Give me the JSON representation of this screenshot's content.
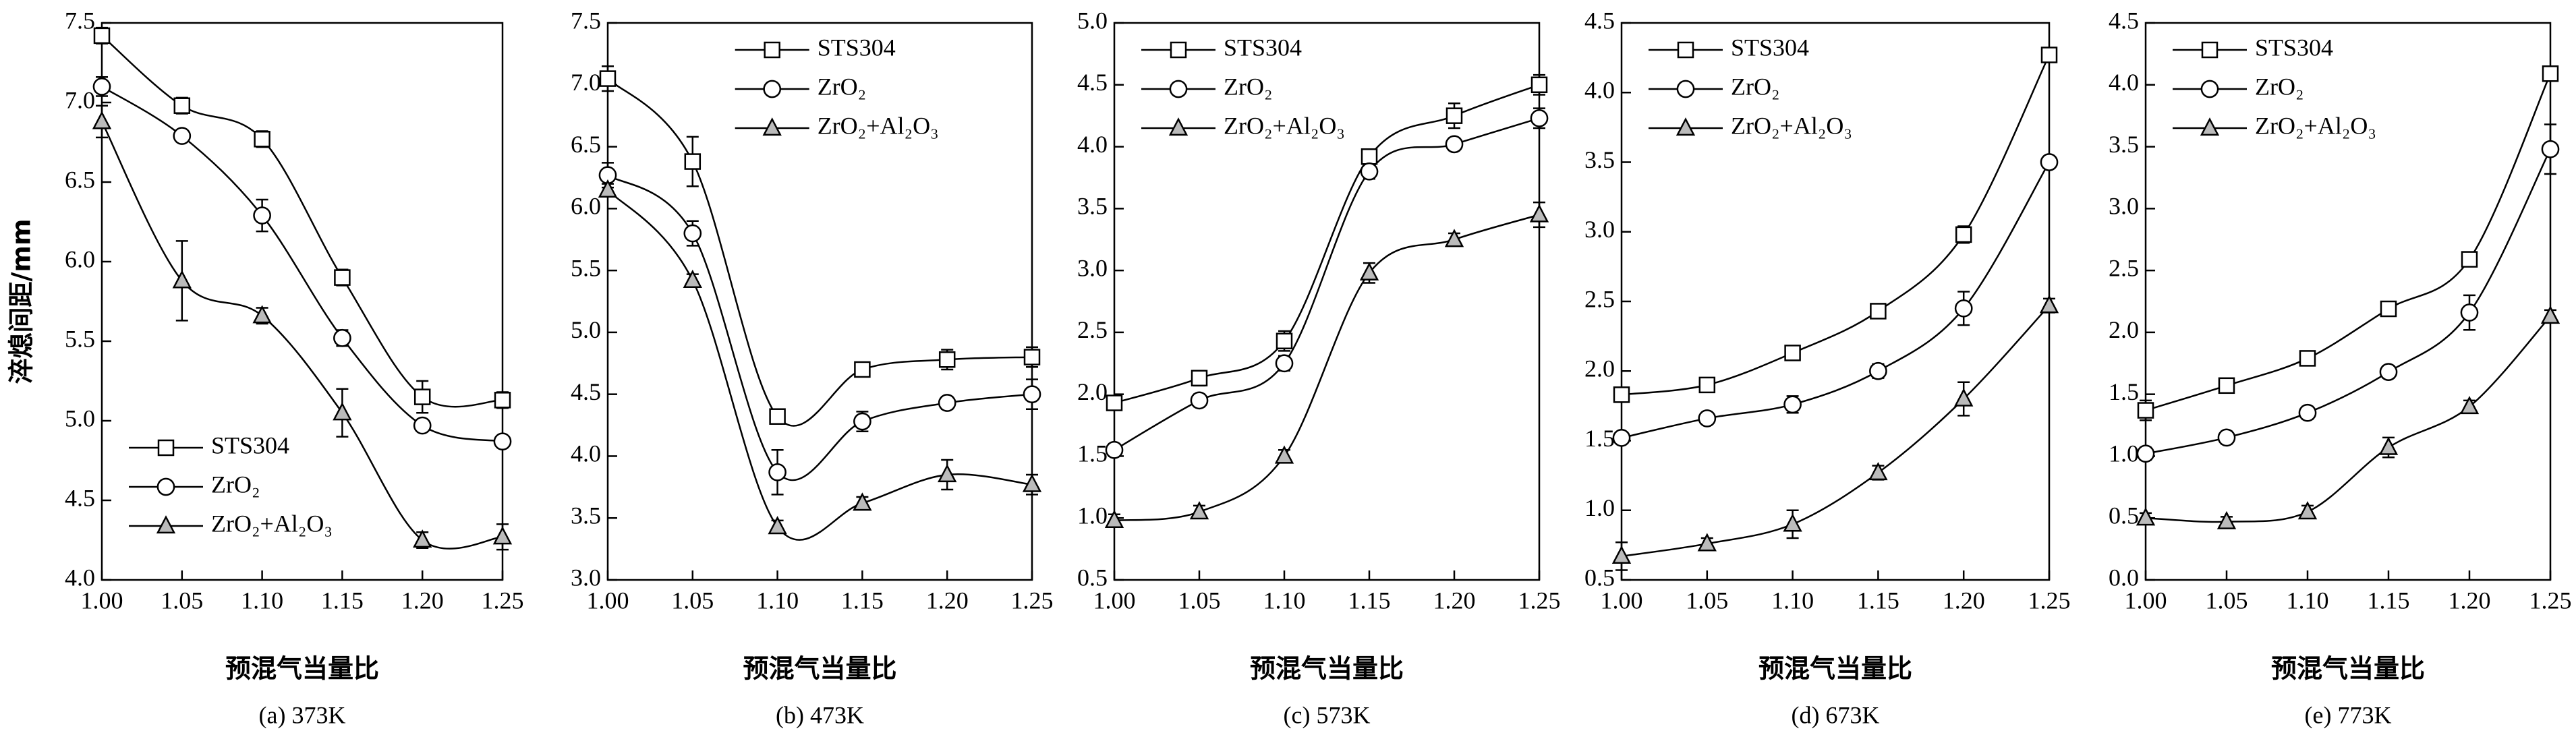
{
  "chart_data": [
    {
      "type": "line",
      "caption": "(a) 373K",
      "x_label": "预混气当量比",
      "y_label": "淬熄间距/mm",
      "legend": "lower left",
      "x": [
        1.0,
        1.05,
        1.1,
        1.15,
        1.2,
        1.25
      ],
      "xlim": [
        1.0,
        1.25
      ],
      "xticks": [
        {
          "value": 1.0,
          "label": "1.00"
        },
        1.05,
        {
          "value": 1.1,
          "label": "1.10"
        },
        1.15,
        {
          "value": 1.2,
          "label": "1.20"
        },
        1.25
      ],
      "ylim": [
        4.0,
        7.5
      ],
      "yticks": [
        {
          "value": 4.0,
          "label": "4.0"
        },
        4.5,
        {
          "value": 5.0,
          "label": "5.0"
        },
        5.5,
        {
          "value": 6.0,
          "label": "6.0"
        },
        6.5,
        {
          "value": 7.0,
          "label": "7.0"
        },
        7.5
      ],
      "series": [
        {
          "name": "STS304",
          "color": "#000000",
          "marker": "square",
          "marker_fill": "#ffffff",
          "values": [
            7.42,
            6.98,
            6.77,
            5.9,
            5.15,
            5.13
          ],
          "errors": [
            0.05,
            0.05,
            0.05,
            0.05,
            0.1,
            0.05
          ]
        },
        {
          "name": "ZrO₂",
          "color": "#000000",
          "marker": "circle",
          "marker_fill": "#ffffff",
          "values": [
            7.1,
            6.79,
            6.29,
            5.52,
            4.97,
            4.87
          ],
          "errors": [
            0.06,
            0.03,
            0.1,
            0.05,
            0.03,
            0.03
          ]
        },
        {
          "name": "ZrO₂+Al₂O₃",
          "color": "#000000",
          "marker": "triangle",
          "marker_fill": "#bbbbbb",
          "values": [
            6.88,
            5.88,
            5.66,
            5.05,
            4.25,
            4.27
          ],
          "errors": [
            0.1,
            0.25,
            0.05,
            0.15,
            0.05,
            0.08
          ]
        }
      ]
    },
    {
      "type": "line",
      "caption": "(b) 473K",
      "x_label": "预混气当量比",
      "legend": "upper center",
      "x": [
        1.0,
        1.05,
        1.1,
        1.15,
        1.2,
        1.25
      ],
      "xlim": [
        1.0,
        1.25
      ],
      "xticks": [
        {
          "value": 1.0,
          "label": "1.00"
        },
        1.05,
        {
          "value": 1.1,
          "label": "1.10"
        },
        1.15,
        {
          "value": 1.2,
          "label": "1.20"
        },
        1.25
      ],
      "ylim": [
        3.0,
        7.5
      ],
      "yticks": [
        {
          "value": 3.0,
          "label": "3.0"
        },
        3.5,
        {
          "value": 4.0,
          "label": "4.0"
        },
        4.5,
        {
          "value": 5.0,
          "label": "5.0"
        },
        5.5,
        {
          "value": 6.0,
          "label": "6.0"
        },
        6.5,
        {
          "value": 7.0,
          "label": "7.0"
        },
        7.5
      ],
      "series": [
        {
          "name": "STS304",
          "color": "#000000",
          "marker": "square",
          "marker_fill": "#ffffff",
          "values": [
            7.05,
            6.38,
            4.32,
            4.7,
            4.78,
            4.8
          ],
          "errors": [
            0.1,
            0.2,
            0.05,
            0.05,
            0.08,
            0.08
          ]
        },
        {
          "name": "ZrO₂",
          "color": "#000000",
          "marker": "circle",
          "marker_fill": "#ffffff",
          "values": [
            6.27,
            5.8,
            3.87,
            4.28,
            4.43,
            4.5
          ],
          "errors": [
            0.1,
            0.1,
            0.18,
            0.08,
            0.05,
            0.12
          ]
        },
        {
          "name": "ZrO₂+Al₂O₃",
          "color": "#000000",
          "marker": "triangle",
          "marker_fill": "#bbbbbb",
          "values": [
            6.15,
            5.42,
            3.43,
            3.62,
            3.85,
            3.77
          ],
          "errors": [
            0.05,
            0.05,
            0.05,
            0.05,
            0.12,
            0.08
          ]
        }
      ]
    },
    {
      "type": "line",
      "caption": "(c) 573K",
      "x_label": "预混气当量比",
      "legend": "upper left",
      "x": [
        1.0,
        1.05,
        1.1,
        1.15,
        1.2,
        1.25
      ],
      "xlim": [
        1.0,
        1.25
      ],
      "xticks": [
        {
          "value": 1.0,
          "label": "1.00"
        },
        1.05,
        {
          "value": 1.1,
          "label": "1.10"
        },
        1.15,
        {
          "value": 1.2,
          "label": "1.20"
        },
        1.25
      ],
      "ylim": [
        0.5,
        5.0
      ],
      "yticks": [
        0.5,
        {
          "value": 1.0,
          "label": "1.0"
        },
        1.5,
        {
          "value": 2.0,
          "label": "2.0"
        },
        2.5,
        {
          "value": 3.0,
          "label": "3.0"
        },
        3.5,
        {
          "value": 4.0,
          "label": "4.0"
        },
        4.5,
        {
          "value": 5.0,
          "label": "5.0"
        }
      ],
      "series": [
        {
          "name": "STS304",
          "color": "#000000",
          "marker": "square",
          "marker_fill": "#ffffff",
          "values": [
            1.93,
            2.13,
            2.43,
            3.92,
            4.25,
            4.5
          ],
          "errors": [
            0.05,
            0.06,
            0.08,
            0.05,
            0.1,
            0.08
          ]
        },
        {
          "name": "ZrO₂",
          "color": "#000000",
          "marker": "circle",
          "marker_fill": "#ffffff",
          "values": [
            1.55,
            1.95,
            2.25,
            3.8,
            4.02,
            4.23
          ],
          "errors": [
            0.05,
            0.05,
            0.06,
            0.06,
            0.05,
            0.08
          ]
        },
        {
          "name": "ZrO₂+Al₂O₃",
          "color": "#000000",
          "marker": "triangle",
          "marker_fill": "#bbbbbb",
          "values": [
            0.98,
            1.05,
            1.5,
            2.98,
            3.25,
            3.45
          ],
          "errors": [
            0.05,
            0.05,
            0.05,
            0.08,
            0.05,
            0.1
          ]
        }
      ]
    },
    {
      "type": "line",
      "caption": "(d) 673K",
      "x_label": "预混气当量比",
      "legend": "upper left",
      "x": [
        1.0,
        1.05,
        1.1,
        1.15,
        1.2,
        1.25
      ],
      "xlim": [
        1.0,
        1.25
      ],
      "xticks": [
        {
          "value": 1.0,
          "label": "1.00"
        },
        1.05,
        {
          "value": 1.1,
          "label": "1.10"
        },
        1.15,
        {
          "value": 1.2,
          "label": "1.20"
        },
        1.25
      ],
      "ylim": [
        0.5,
        4.5
      ],
      "yticks": [
        0.5,
        {
          "value": 1.0,
          "label": "1.0"
        },
        1.5,
        {
          "value": 2.0,
          "label": "2.0"
        },
        2.5,
        {
          "value": 3.0,
          "label": "3.0"
        },
        3.5,
        {
          "value": 4.0,
          "label": "4.0"
        },
        4.5
      ],
      "series": [
        {
          "name": "STS304",
          "color": "#000000",
          "marker": "square",
          "marker_fill": "#ffffff",
          "values": [
            1.83,
            1.9,
            2.13,
            2.43,
            2.98,
            4.27
          ],
          "errors": [
            0.05,
            0.04,
            0.04,
            0.05,
            0.06,
            0.05
          ]
        },
        {
          "name": "ZrO₂",
          "color": "#000000",
          "marker": "circle",
          "marker_fill": "#ffffff",
          "values": [
            1.52,
            1.66,
            1.76,
            2.0,
            2.45,
            3.5
          ],
          "errors": [
            0.03,
            0.04,
            0.06,
            0.05,
            0.12,
            0.04
          ]
        },
        {
          "name": "ZrO₂+Al₂O₃",
          "color": "#000000",
          "marker": "triangle",
          "marker_fill": "#bbbbbb",
          "values": [
            0.67,
            0.76,
            0.9,
            1.27,
            1.8,
            2.47
          ],
          "errors": [
            0.1,
            0.04,
            0.1,
            0.05,
            0.12,
            0.05
          ]
        }
      ]
    },
    {
      "type": "line",
      "caption": "(e) 773K",
      "x_label": "预混气当量比",
      "legend": "upper left",
      "x": [
        1.0,
        1.05,
        1.1,
        1.15,
        1.2,
        1.25
      ],
      "xlim": [
        1.0,
        1.25
      ],
      "xticks": [
        {
          "value": 1.0,
          "label": "1.00"
        },
        1.05,
        {
          "value": 1.1,
          "label": "1.10"
        },
        1.15,
        {
          "value": 1.2,
          "label": "1.20"
        },
        1.25
      ],
      "ylim": [
        0.0,
        4.5
      ],
      "yticks": [
        {
          "value": 0.0,
          "label": "0.0"
        },
        0.5,
        {
          "value": 1.0,
          "label": "1.0"
        },
        1.5,
        {
          "value": 2.0,
          "label": "2.0"
        },
        2.5,
        {
          "value": 3.0,
          "label": "3.0"
        },
        3.5,
        {
          "value": 4.0,
          "label": "4.0"
        },
        4.5
      ],
      "series": [
        {
          "name": "STS304",
          "color": "#000000",
          "marker": "square",
          "marker_fill": "#ffffff",
          "values": [
            1.37,
            1.57,
            1.79,
            2.19,
            2.59,
            4.09
          ],
          "errors": [
            0.08,
            0.05,
            0.05,
            0.05,
            0.05,
            0.05
          ]
        },
        {
          "name": "ZrO₂",
          "color": "#000000",
          "marker": "circle",
          "marker_fill": "#ffffff",
          "values": [
            1.02,
            1.15,
            1.35,
            1.68,
            2.16,
            3.48
          ],
          "errors": [
            0.05,
            0.05,
            0.05,
            0.05,
            0.14,
            0.2
          ]
        },
        {
          "name": "ZrO₂+Al₂O₃",
          "color": "#000000",
          "marker": "triangle",
          "marker_fill": "#bbbbbb",
          "values": [
            0.5,
            0.47,
            0.55,
            1.07,
            1.4,
            2.13
          ],
          "errors": [
            0.04,
            0.04,
            0.05,
            0.08,
            0.05,
            0.05
          ]
        }
      ]
    }
  ]
}
